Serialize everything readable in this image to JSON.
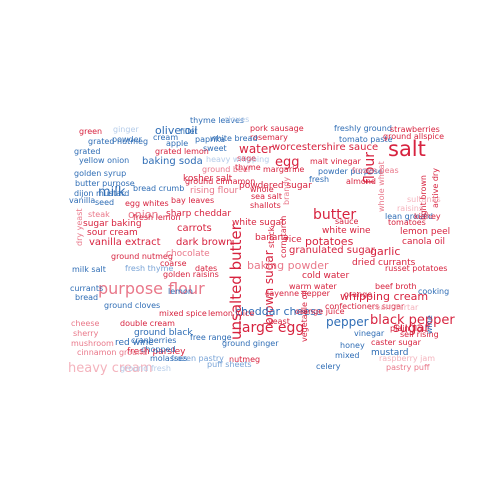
{
  "colors": {
    "red": "#d7233f",
    "red_light": "#e9788a",
    "red_pale": "#f4b3bd",
    "blue": "#2f6db5",
    "blue_light": "#78a3d6",
    "blue_pale": "#b5cce9"
  },
  "words": [
    {
      "text": "salt",
      "color": "#d7233f"
    },
    {
      "text": "purpose flour",
      "color": "#e9788a"
    },
    {
      "text": "unsalted butter",
      "color": "#d7233f"
    },
    {
      "text": "large egg",
      "color": "#d7233f"
    },
    {
      "text": "butter",
      "color": "#d7233f"
    },
    {
      "text": "black pepper",
      "color": "#d7233f"
    },
    {
      "text": "brown sugar",
      "color": "#d7233f"
    },
    {
      "text": "flour",
      "color": "#d7233f"
    },
    {
      "text": "egg",
      "color": "#d7233f"
    },
    {
      "text": "water",
      "color": "#d7233f"
    },
    {
      "text": "milk",
      "color": "#2f6db5"
    },
    {
      "text": "onion",
      "color": "#e9788a"
    },
    {
      "text": "pepper",
      "color": "#2f6db5"
    },
    {
      "text": "sugar",
      "color": "#d7233f"
    },
    {
      "text": "heavy cream",
      "color": "#f4b3bd"
    },
    {
      "text": "olive oil",
      "color": "#2f6db5"
    },
    {
      "text": "worcestershire sauce",
      "color": "#d7233f"
    },
    {
      "text": "baking powder",
      "color": "#e9788a"
    },
    {
      "text": "whipping cream",
      "color": "#d7233f"
    },
    {
      "text": "cheddar cheese",
      "color": "#2f6db5"
    },
    {
      "text": "potatoes",
      "color": "#d7233f"
    },
    {
      "text": "garlic",
      "color": "#d7233f"
    },
    {
      "text": "granulated sugar",
      "color": "#d7233f"
    },
    {
      "text": "vanilla extract",
      "color": "#d7233f"
    },
    {
      "text": "dark brown",
      "color": "#d7233f"
    },
    {
      "text": "ground beef",
      "color": "#e9788a"
    },
    {
      "text": "sharp cheddar",
      "color": "#d7233f"
    },
    {
      "text": "egg whites",
      "color": "#d7233f"
    },
    {
      "text": "carrots",
      "color": "#d7233f"
    },
    {
      "text": "white sugar",
      "color": "#d7233f"
    },
    {
      "text": "rice",
      "color": "#d7233f"
    },
    {
      "text": "chocolate",
      "color": "#e9788a"
    },
    {
      "text": "banana",
      "color": "#d7233f"
    },
    {
      "text": "cold water",
      "color": "#d7233f"
    },
    {
      "text": "white wine",
      "color": "#d7233f"
    },
    {
      "text": "lemon peel",
      "color": "#d7233f"
    },
    {
      "text": "canola oil",
      "color": "#d7233f"
    },
    {
      "text": "russet potatoes",
      "color": "#d7233f"
    },
    {
      "text": "dried currants",
      "color": "#d7233f"
    },
    {
      "text": "kosher salt",
      "color": "#d7233f"
    },
    {
      "text": "baking soda",
      "color": "#2f6db5"
    },
    {
      "text": "powdered sugar",
      "color": "#d7233f"
    },
    {
      "text": "rising flour",
      "color": "#e9788a"
    },
    {
      "text": "sugar baking",
      "color": "#d7233f"
    },
    {
      "text": "sour cream",
      "color": "#d7233f"
    },
    {
      "text": "ground nutmeg",
      "color": "#d7233f"
    },
    {
      "text": "double cream",
      "color": "#d7233f"
    },
    {
      "text": "ground black",
      "color": "#2f6db5"
    },
    {
      "text": "red wine",
      "color": "#2f6db5"
    },
    {
      "text": "fresh parsley",
      "color": "#d7233f"
    },
    {
      "text": "frozen pastry",
      "color": "#78a3d6"
    },
    {
      "text": "lemon juice",
      "color": "#d7233f"
    },
    {
      "text": "cayenne pepper",
      "color": "#d7233f"
    },
    {
      "text": "chopped",
      "color": "#2f6db5"
    },
    {
      "text": "nutmeg",
      "color": "#d7233f"
    },
    {
      "text": "celery",
      "color": "#2f6db5"
    },
    {
      "text": "mustard",
      "color": "#2f6db5"
    },
    {
      "text": "yeast",
      "color": "#d7233f"
    },
    {
      "text": "warm water",
      "color": "#d7233f"
    },
    {
      "text": "orange juice",
      "color": "#d7233f"
    },
    {
      "text": "vinegar",
      "color": "#2f6db5"
    },
    {
      "text": "honey",
      "color": "#2f6db5"
    },
    {
      "text": "confectioners sugar",
      "color": "#d7233f"
    },
    {
      "text": "self rising",
      "color": "#d7233f"
    },
    {
      "text": "caster sugar",
      "color": "#d7233f"
    },
    {
      "text": "plain flour",
      "color": "#d7233f"
    },
    {
      "text": "beef broth",
      "color": "#d7233f"
    },
    {
      "text": "golden raisins",
      "color": "#d7233f"
    },
    {
      "text": "golden syrup",
      "color": "#2f6db5"
    },
    {
      "text": "yellow onion",
      "color": "#2f6db5"
    },
    {
      "text": "butter purpose",
      "color": "#2f6db5"
    },
    {
      "text": "dijon mustard",
      "color": "#2f6db5"
    },
    {
      "text": "ground cloves",
      "color": "#2f6db5"
    },
    {
      "text": "bread crumb",
      "color": "#2f6db5"
    },
    {
      "text": "ground cinnamon",
      "color": "#d7233f"
    },
    {
      "text": "cinnamon ground",
      "color": "#e9788a"
    },
    {
      "text": "paprika",
      "color": "#2f6db5"
    },
    {
      "text": "apple",
      "color": "#2f6db5"
    },
    {
      "text": "sweet",
      "color": "#2f6db5"
    },
    {
      "text": "cream",
      "color": "#2f6db5"
    },
    {
      "text": "green",
      "color": "#d7233f"
    },
    {
      "text": "powder",
      "color": "#2f6db5"
    },
    {
      "text": "pork sausage",
      "color": "#d7233f"
    },
    {
      "text": "freshly ground",
      "color": "#2f6db5"
    },
    {
      "text": "malt vinegar",
      "color": "#d7233f"
    },
    {
      "text": "tomato paste",
      "color": "#2f6db5"
    },
    {
      "text": "powder purpose",
      "color": "#2f6db5"
    },
    {
      "text": "strawberries",
      "color": "#d7233f"
    },
    {
      "text": "ground allspice",
      "color": "#d7233f"
    },
    {
      "text": "light brown",
      "color": "#d7233f"
    },
    {
      "text": "active dry",
      "color": "#d7233f"
    },
    {
      "text": "lean ground",
      "color": "#2f6db5"
    },
    {
      "text": "raisins",
      "color": "#f4b3bd"
    },
    {
      "text": "tomatoes",
      "color": "#d7233f"
    },
    {
      "text": "kidney",
      "color": "#d7233f"
    },
    {
      "text": "sauce",
      "color": "#d7233f"
    },
    {
      "text": "margarine",
      "color": "#d7233f"
    },
    {
      "text": "sea salt",
      "color": "#d7233f"
    },
    {
      "text": "bay leaves",
      "color": "#d7233f"
    },
    {
      "text": "shallots",
      "color": "#d7233f"
    },
    {
      "text": "almond",
      "color": "#d7233f"
    },
    {
      "text": "frozen peas",
      "color": "#e9788a"
    },
    {
      "text": "fresh",
      "color": "#2f6db5"
    },
    {
      "text": "sage",
      "color": "#d7233f"
    },
    {
      "text": "rosemary",
      "color": "#d7233f"
    },
    {
      "text": "thyme",
      "color": "#d7233f"
    },
    {
      "text": "vanilla",
      "color": "#2f6db5"
    },
    {
      "text": "steak",
      "color": "#e9788a"
    },
    {
      "text": "milk salt",
      "color": "#2f6db5"
    },
    {
      "text": "fresh thyme",
      "color": "#78a3d6"
    },
    {
      "text": "bread",
      "color": "#2f6db5"
    },
    {
      "text": "sherry",
      "color": "#e9788a"
    },
    {
      "text": "mushroom",
      "color": "#e9788a"
    },
    {
      "text": "cheese",
      "color": "#e9788a"
    },
    {
      "text": "cranberries",
      "color": "#2f6db5"
    },
    {
      "text": "mixed spice",
      "color": "#d7233f"
    },
    {
      "text": "ground ginger",
      "color": "#2f6db5"
    },
    {
      "text": "molasses",
      "color": "#2f6db5"
    },
    {
      "text": "puff sheets",
      "color": "#78a3d6"
    },
    {
      "text": "orange",
      "color": "#d7233f"
    },
    {
      "text": "wine",
      "color": "#2f6db5"
    },
    {
      "text": "raspberry jam",
      "color": "#f4b3bd"
    },
    {
      "text": "pastry puff",
      "color": "#e9788a"
    },
    {
      "text": "cooking",
      "color": "#2f6db5"
    },
    {
      "text": "cream tartar",
      "color": "#f4b3bd"
    },
    {
      "text": "whole wheat",
      "color": "#e9788a"
    },
    {
      "text": "grated lemon",
      "color": "#d7233f"
    },
    {
      "text": "thyme leaves",
      "color": "#2f6db5"
    },
    {
      "text": "fillet",
      "color": "#2f6db5"
    },
    {
      "text": "white bread",
      "color": "#2f6db5"
    },
    {
      "text": "grated nutmeg",
      "color": "#2f6db5"
    },
    {
      "text": "ginger",
      "color": "#b5cce9"
    },
    {
      "text": "stock",
      "color": "#d7233f"
    },
    {
      "text": "vegetable oil",
      "color": "#d7233f"
    },
    {
      "text": "brandy",
      "color": "#e9788a"
    },
    {
      "text": "cornstarch",
      "color": "#d7233f"
    },
    {
      "text": "coarse",
      "color": "#d7233f"
    },
    {
      "text": "dates",
      "color": "#d7233f"
    },
    {
      "text": "fresh lemon",
      "color": "#d7233f"
    },
    {
      "text": "free range",
      "color": "#2f6db5"
    },
    {
      "text": "ground fresh",
      "color": "#b5cce9"
    },
    {
      "text": "currants",
      "color": "#2f6db5"
    },
    {
      "text": "dry yeast",
      "color": "#e9788a"
    },
    {
      "text": "lemon",
      "color": "#2f6db5"
    },
    {
      "text": "mixed",
      "color": "#2f6db5"
    },
    {
      "text": "seed",
      "color": "#2f6db5"
    },
    {
      "text": "grated",
      "color": "#2f6db5"
    },
    {
      "text": "sultanas",
      "color": "#f4b3bd"
    },
    {
      "text": "cloves",
      "color": "#b5cce9"
    },
    {
      "text": "whole",
      "color": "#d7233f"
    },
    {
      "text": "heavy whipping",
      "color": "#b5cce9"
    }
  ]
}
